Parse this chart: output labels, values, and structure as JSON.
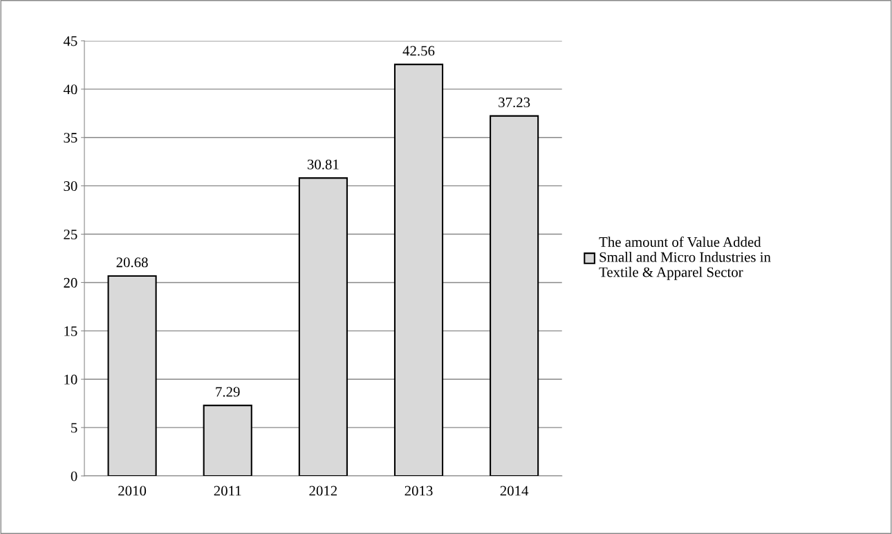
{
  "chart_data": {
    "type": "bar",
    "categories": [
      "2010",
      "2011",
      "2012",
      "2013",
      "2014"
    ],
    "series": [
      {
        "name": "The amount of Value Added\nSmall and Micro Industries in\nTextile & Apparel Sector",
        "color": "#d9d9d9",
        "values": [
          20.68,
          7.29,
          30.81,
          42.56,
          37.23
        ]
      }
    ],
    "ylim": [
      0,
      45
    ],
    "yticks": [
      0,
      5,
      10,
      15,
      20,
      25,
      30,
      35,
      40,
      45
    ],
    "grid": "y",
    "legend": "right",
    "data_labels": true
  }
}
